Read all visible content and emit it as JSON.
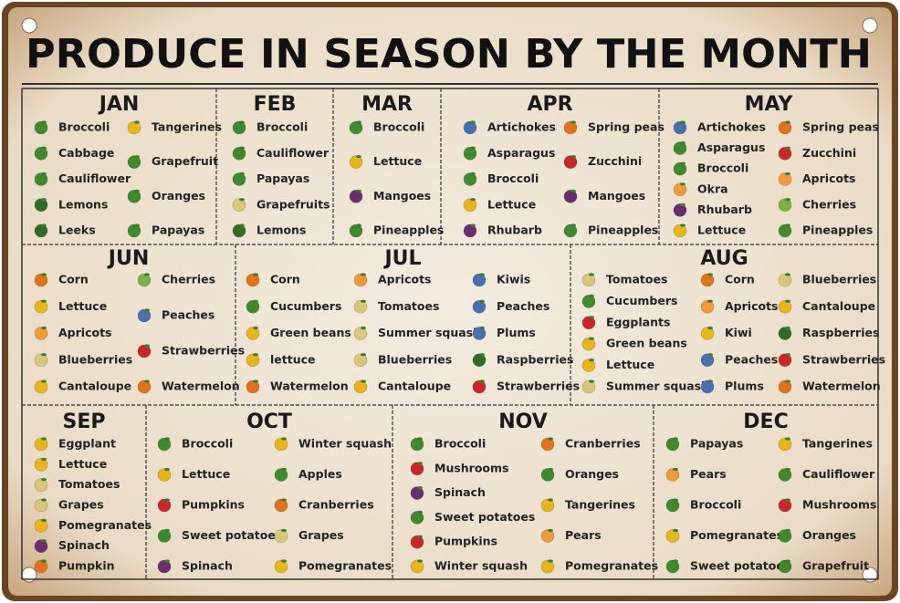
{
  "title": "PRODUCE IN SEASON BY THE MONTH",
  "months": [
    {
      "name": "JAN",
      "columns": [
        [
          "Broccoli",
          "Cabbage",
          "Cauliflower",
          "Lemons",
          "Leeks"
        ],
        [
          "Tangerines",
          "Grapefruit",
          "Oranges",
          "Papayas"
        ]
      ]
    },
    {
      "name": "FEB",
      "columns": [
        [
          "Broccoli",
          "Cauliflower",
          "Papayas",
          "Grapefruits",
          "Lemons"
        ]
      ]
    },
    {
      "name": "MAR",
      "columns": [
        [
          "Broccoli",
          "Lettuce",
          "Mangoes",
          "Pineapples"
        ]
      ]
    },
    {
      "name": "APR",
      "columns": [
        [
          "Artichokes",
          "Asparagus",
          "Broccoli",
          "Lettuce",
          "Rhubarb"
        ],
        [
          "Spring peas",
          "Zucchini",
          "Mangoes",
          "Pineapples"
        ]
      ]
    },
    {
      "name": "MAY",
      "columns": [
        [
          "Artichokes",
          "Asparagus",
          "Broccoli",
          "Okra",
          "Rhubarb",
          "Lettuce"
        ],
        [
          "Spring peas",
          "Zucchini",
          "Apricots",
          "Cherries",
          "Pineapples"
        ]
      ]
    },
    {
      "name": "JUN",
      "columns": [
        [
          "Corn",
          "Lettuce",
          "Apricots",
          "Blueberries",
          "Cantaloupe"
        ],
        [
          "Cherries",
          "Peaches",
          "Strawberries",
          "Watermelon"
        ]
      ]
    },
    {
      "name": "JUL",
      "columns": [
        [
          "Corn",
          "Cucumbers",
          "Green beans",
          "lettuce",
          "Watermelon"
        ],
        [
          "Apricots",
          "Tomatoes",
          "Summer squash",
          "Blueberries",
          "Cantaloupe"
        ],
        [
          "Kiwis",
          "Peaches",
          "Plums",
          "Raspberries",
          "Strawberries"
        ]
      ]
    },
    {
      "name": "AUG",
      "columns": [
        [
          "Tomatoes",
          "Cucumbers",
          "Eggplants",
          "Green beans",
          "Lettuce",
          "Summer squash"
        ],
        [
          "Corn",
          "Apricots",
          "Kiwi",
          "Peaches",
          "Plums"
        ],
        [
          "Blueberries",
          "Cantaloupe",
          "Raspberries",
          "Strawberries",
          "Watermelon"
        ]
      ]
    },
    {
      "name": "SEP",
      "columns": [
        [
          "Eggplant",
          "Lettuce",
          "Tomatoes",
          "Grapes",
          "Pomegranates",
          "Spinach",
          "Pumpkin"
        ]
      ]
    },
    {
      "name": "OCT",
      "columns": [
        [
          "Broccoli",
          "Lettuce",
          "Pumpkins",
          "Sweet potatoes",
          "Spinach"
        ],
        [
          "Winter squash",
          "Apples",
          "Cranberries",
          "Grapes",
          "Pomegranates"
        ]
      ]
    },
    {
      "name": "NOV",
      "columns": [
        [
          "Broccoli",
          "Mushrooms",
          "Spinach",
          "Sweet potatoes",
          "Pumpkins",
          "Winter squash"
        ],
        [
          "Cranberries",
          "Oranges",
          "Tangerines",
          "Pears",
          "Pomegranates"
        ]
      ]
    },
    {
      "name": "DEC",
      "columns": [
        [
          "Papayas",
          "Pears",
          "Broccoli",
          "Pomegranates",
          "Sweet potatoes"
        ],
        [
          "Tangerines",
          "Cauliflower",
          "Mushrooms",
          "Oranges",
          "Grapefruit"
        ]
      ]
    }
  ]
}
